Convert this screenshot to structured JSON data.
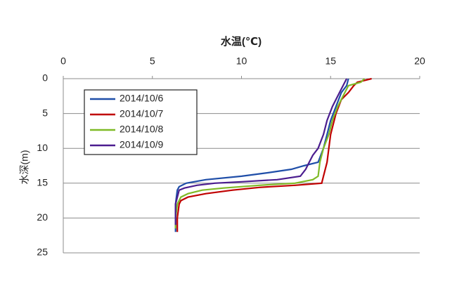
{
  "chart_data": {
    "type": "line",
    "title": "水温(℃)",
    "y_label": "水深(m)",
    "xlim": [
      0,
      20
    ],
    "xticks": [
      0,
      5,
      10,
      15,
      20
    ],
    "ylim": [
      0,
      25
    ],
    "yticks": [
      0,
      5,
      10,
      15,
      20,
      25
    ],
    "y_inverted": true,
    "grid": true,
    "legend": "upper left",
    "series": [
      {
        "name": "2014/10/6",
        "color": "#1f4ea8",
        "x": [
          16.0,
          15.9,
          15.6,
          15.3,
          15.0,
          14.8,
          14.6,
          14.3,
          13.5,
          12.8,
          11.5,
          10.0,
          8.0,
          6.9,
          6.5,
          6.4,
          6.3,
          6.3,
          6.3
        ],
        "values": [
          0,
          1,
          2,
          4,
          6,
          8,
          10,
          12,
          12.5,
          13,
          13.5,
          14,
          14.5,
          15,
          15.5,
          16,
          18,
          20,
          22
        ]
      },
      {
        "name": "2014/10/7",
        "color": "#c00000",
        "x": [
          17.3,
          16.5,
          16.3,
          16.0,
          15.6,
          15.3,
          15.0,
          14.9,
          14.8,
          14.6,
          14.5,
          13.0,
          11.0,
          9.5,
          8.0,
          7.0,
          6.6,
          6.5,
          6.4,
          6.4
        ],
        "values": [
          0,
          0.5,
          1,
          2,
          3,
          5,
          8,
          10,
          12,
          14,
          15,
          15.3,
          15.6,
          16,
          16.5,
          17,
          17.5,
          18,
          20,
          22
        ]
      },
      {
        "name": "2014/10/8",
        "color": "#7fba26",
        "x": [
          16.9,
          16.7,
          16.0,
          15.8,
          15.4,
          15.1,
          14.9,
          14.6,
          14.4,
          14.3,
          14.0,
          13.0,
          11.0,
          9.0,
          7.8,
          7.0,
          6.6,
          6.4,
          6.3,
          6.3
        ],
        "values": [
          0,
          0.5,
          1,
          2,
          4,
          6,
          8,
          10,
          12,
          14,
          14.5,
          15,
          15.3,
          15.7,
          16,
          16.5,
          17,
          18,
          20,
          21.5
        ]
      },
      {
        "name": "2014/10/9",
        "color": "#4b1d8f",
        "x": [
          15.9,
          15.8,
          15.5,
          15.1,
          14.8,
          14.6,
          14.3,
          14.0,
          13.8,
          13.6,
          13.3,
          12.0,
          10.0,
          8.5,
          7.5,
          6.8,
          6.5,
          6.3,
          6.3,
          6.3
        ],
        "values": [
          0,
          0.5,
          2,
          4,
          6,
          8,
          10,
          11,
          12,
          13,
          14,
          14.5,
          14.8,
          15,
          15.3,
          15.7,
          16,
          18,
          20,
          21
        ]
      }
    ]
  }
}
